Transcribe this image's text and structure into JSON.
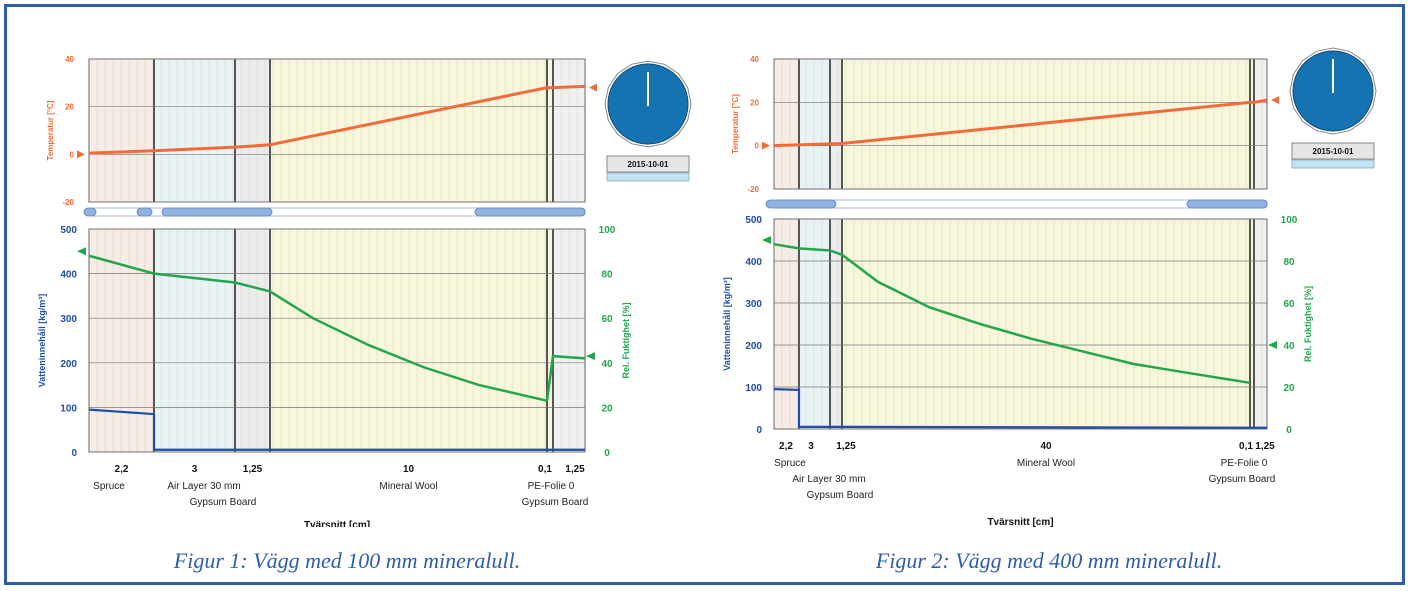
{
  "colors": {
    "frame": "#2e5ea7",
    "temperature": "#f26b3a",
    "water_content": "#1f4ea8",
    "relative_humidity": "#21a64b",
    "caption": "#2e5ea7",
    "clock": "#1673b1"
  },
  "figures": [
    {
      "caption": "Figur 1: Vägg med 100 mm mineralull.",
      "date": "2015-10-01",
      "temp_ylabel": "Temperatur [°C]",
      "water_ylabel": "Vatteninnehåll [kg/m³]",
      "rh_ylabel": "Rel. Fuktighet [%]",
      "xlabel": "Tvärsnitt [cm]",
      "temp_ticks": [
        "40",
        "20",
        "0",
        "-20"
      ],
      "water_ticks": [
        "500",
        "400",
        "300",
        "200",
        "100",
        "0"
      ],
      "rh_ticks": [
        "100",
        "80",
        "60",
        "40",
        "20",
        "0"
      ],
      "layers": [
        {
          "thickness": "2,2",
          "material": "Spruce"
        },
        {
          "thickness": "3",
          "material": "Air Layer 30 mm"
        },
        {
          "thickness": "1,25",
          "material": "Gypsum Board"
        },
        {
          "thickness": "10",
          "material": "Mineral Wool"
        },
        {
          "thickness": "0,1",
          "material": "PE-Folie 0"
        },
        {
          "thickness": "1,25",
          "material": "Gypsum Board"
        }
      ]
    },
    {
      "caption": "Figur 2: Vägg med 400 mm mineralull.",
      "date": "2015-10-01",
      "temp_ylabel": "Temperatur [°C]",
      "water_ylabel": "Vatteninnehåll [kg/m³]",
      "rh_ylabel": "Rel. Fuktighet [%]",
      "xlabel": "Tvärsnitt [cm]",
      "temp_ticks": [
        "40",
        "20",
        "0",
        "-20"
      ],
      "water_ticks": [
        "500",
        "400",
        "300",
        "200",
        "100",
        "0"
      ],
      "rh_ticks": [
        "100",
        "80",
        "60",
        "40",
        "20",
        "0"
      ],
      "layers": [
        {
          "thickness": "2,2",
          "material": "Spruce"
        },
        {
          "thickness": "3",
          "material": "Air Layer 30 mm"
        },
        {
          "thickness": "1,25",
          "material": "Gypsum Board"
        },
        {
          "thickness": "40",
          "material": "Mineral Wool"
        },
        {
          "thickness": "0,1",
          "material": "PE-Folie 0"
        },
        {
          "thickness": "1,25",
          "material": "Gypsum Board"
        }
      ]
    }
  ],
  "chart_data": [
    {
      "type": "line",
      "title": "",
      "xlabel": "Tvärsnitt [cm]",
      "layer_widths_cm": [
        2.2,
        3,
        1.25,
        10,
        0.1,
        1.25
      ],
      "temperature": {
        "ylabel": "Temperatur [°C]",
        "ylim": [
          -20,
          40
        ],
        "x": [
          0,
          2.2,
          5.2,
          6.45,
          16.45,
          16.55,
          17.8
        ],
        "y": [
          0.5,
          1.5,
          3,
          4,
          28,
          28,
          28.5
        ],
        "boundary_markers": {
          "left": 0,
          "right": 28
        }
      },
      "water_content": {
        "ylabel": "Vatteninnehåll [kg/m³]",
        "ylim": [
          0,
          500
        ],
        "x": [
          0,
          2.2,
          2.2,
          5.2,
          5.2,
          6.45,
          6.45,
          16.45,
          16.45,
          16.55,
          17.8
        ],
        "y": [
          95,
          85,
          5,
          5,
          5,
          5,
          5,
          5,
          5,
          5,
          5
        ]
      },
      "relative_humidity": {
        "ylabel": "Rel. Fuktighet [%]",
        "ylim": [
          0,
          100
        ],
        "x": [
          0,
          2.2,
          5.2,
          6.45,
          8,
          10,
          12,
          14,
          16.45,
          16.55,
          17.8
        ],
        "y": [
          88,
          80,
          76,
          72,
          60,
          48,
          38,
          30,
          23,
          43,
          42
        ],
        "boundary_markers": {
          "left": 90,
          "right": 43
        }
      }
    },
    {
      "type": "line",
      "title": "",
      "xlabel": "Tvärsnitt [cm]",
      "layer_widths_cm": [
        2.2,
        3,
        1.25,
        40,
        0.1,
        1.25
      ],
      "temperature": {
        "ylabel": "Temperatur [°C]",
        "ylim": [
          -20,
          40
        ],
        "x": [
          0,
          6.45,
          46.45,
          46.55,
          47.8
        ],
        "y": [
          0,
          1,
          20,
          20,
          21
        ],
        "boundary_markers": {
          "left": 0,
          "right": 21
        }
      },
      "water_content": {
        "ylabel": "Vatteninnehåll [kg/m³]",
        "ylim": [
          0,
          500
        ],
        "x": [
          0,
          2.2,
          2.2,
          5.2,
          6.45,
          46.45,
          47.8
        ],
        "y": [
          95,
          93,
          5,
          5,
          5,
          3,
          3
        ]
      },
      "relative_humidity": {
        "ylabel": "Rel. Fuktighet [%]",
        "ylim": [
          0,
          100
        ],
        "x": [
          0,
          2.2,
          5.2,
          6.45,
          10,
          15,
          20,
          25,
          30,
          35,
          40,
          46.45
        ],
        "y": [
          88,
          86,
          85,
          83,
          70,
          58,
          50,
          43,
          37,
          31,
          27,
          22
        ],
        "boundary_markers": {
          "left": 90,
          "right": 40
        }
      }
    }
  ]
}
